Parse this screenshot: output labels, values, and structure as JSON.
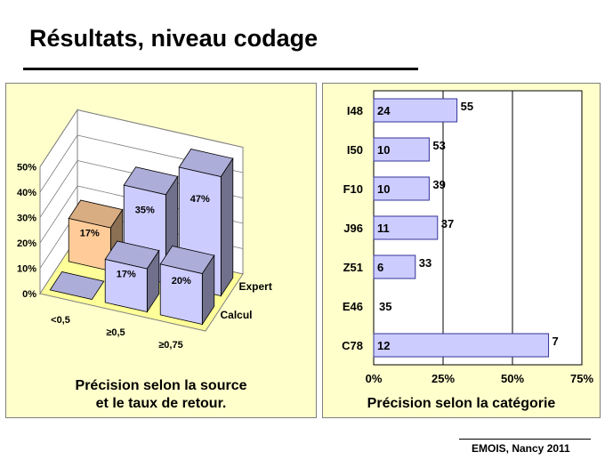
{
  "title": "Résultats, niveau codage",
  "footer": "EMOIS, Nancy 2011",
  "colors": {
    "panel_bg": "#ffffcc",
    "bar_blue": "#ccccff",
    "bar_orange": "#ffcc99",
    "floor": "#ffff99"
  },
  "chart_data": [
    {
      "type": "bar",
      "subtype": "3d-column",
      "caption_line1": "Précision selon la source",
      "caption_line2": "et le taux de retour.",
      "categories": [
        "<0,5",
        "≥0,5",
        "≥0,75"
      ],
      "series": [
        {
          "name": "Calcul",
          "values": [
            0,
            17,
            20
          ],
          "labels": [
            "",
            "17%",
            "20%"
          ]
        },
        {
          "name": "Expert",
          "values": [
            17,
            35,
            47
          ],
          "labels": [
            "17%",
            "35%",
            "47%"
          ]
        }
      ],
      "ylim": [
        0,
        50
      ],
      "yticks": [
        "0%",
        "10%",
        "20%",
        "30%",
        "40%",
        "50%"
      ],
      "grid": true
    },
    {
      "type": "bar",
      "orientation": "horizontal",
      "caption": "Précision selon la catégorie",
      "categories": [
        "I48",
        "I50",
        "F10",
        "J96",
        "Z51",
        "E46",
        "C78"
      ],
      "values": [
        30,
        20,
        20,
        23,
        15,
        0,
        63
      ],
      "inner_labels": [
        "24",
        "10",
        "10",
        "11",
        "6",
        "",
        "12"
      ],
      "outer_labels": [
        "55",
        "53",
        "39",
        "37",
        "33",
        "35",
        "7"
      ],
      "xlim": [
        0,
        75
      ],
      "xticks": [
        "0%",
        "25%",
        "50%",
        "75%"
      ],
      "grid": true
    }
  ]
}
